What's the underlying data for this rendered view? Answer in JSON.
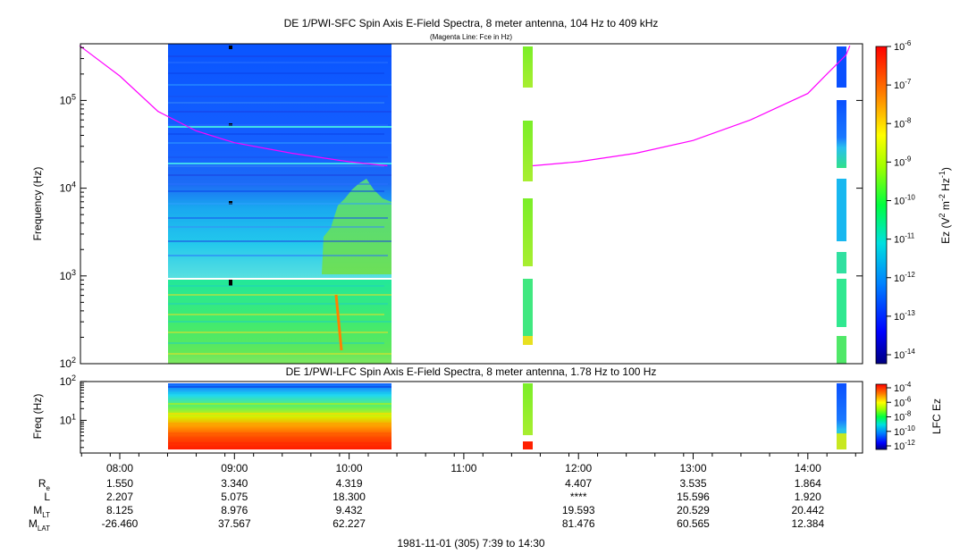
{
  "chart_data": [
    {
      "type": "heatmap",
      "title": "DE 1/PWI-SFC  Spin Axis E-Field Spectra, 8 meter antenna, 104 Hz to 409 kHz",
      "subtitle": "(Magenta Line: Fce in Hz)",
      "ylabel": "Frequency (Hz)",
      "yscale": "log",
      "ylim": [
        100,
        420000
      ],
      "yticks": [
        {
          "v": 100,
          "m": "2"
        },
        {
          "v": 1000,
          "m": "3"
        },
        {
          "v": 10000,
          "m": "4"
        },
        {
          "v": 100000,
          "m": "5"
        }
      ],
      "colorbar": {
        "label_parts": [
          "Ez (V",
          "2",
          " m",
          "-2",
          " Hz",
          "-1",
          ")"
        ],
        "scale": "log",
        "range": [
          1e-14,
          1e-06
        ],
        "ticks": [
          {
            "v": 1e-06,
            "m": "-6"
          },
          {
            "v": 1e-07,
            "m": "-7"
          },
          {
            "v": 1e-08,
            "m": "-8"
          },
          {
            "v": 1e-09,
            "m": "-9"
          },
          {
            "v": 1e-10,
            "m": "-10"
          },
          {
            "v": 1e-11,
            "m": "-11"
          },
          {
            "v": 1e-12,
            "m": "-12"
          },
          {
            "v": 1e-13,
            "m": "-13"
          },
          {
            "v": 1e-14,
            "m": "-14"
          }
        ]
      },
      "data_blocks": [
        {
          "t0": "08:24",
          "t1": "10:21",
          "f0": 950,
          "f1": 420000,
          "value": 1e-13,
          "note": "mostly 1e-13 to 1e-12"
        },
        {
          "t0": "08:24",
          "t1": "10:21",
          "f0": 100,
          "f1": 900,
          "value": 1e-10,
          "note": "mostly 1e-10 to 1e-9"
        },
        {
          "t0": "11:33",
          "t1": "11:38",
          "f0": 100,
          "f1": 420000,
          "value": 1e-10
        },
        {
          "t0": "14:16",
          "t1": "14:22",
          "f0": 100,
          "f1": 420000,
          "value": 1e-13
        }
      ],
      "series": [
        {
          "name": "Fce",
          "x": [
            "07:39",
            "08:00",
            "08:20",
            "08:40",
            "09:00",
            "09:30",
            "10:00",
            "10:20",
            "11:36",
            "12:00",
            "12:30",
            "13:00",
            "13:30",
            "14:00",
            "14:10",
            "14:20",
            "14:22"
          ],
          "y": [
            420000,
            190000,
            75000,
            45000,
            33000,
            25000,
            20000,
            18000,
            18000,
            20000,
            25000,
            35000,
            60000,
            120000,
            200000,
            330000,
            420000
          ]
        }
      ]
    },
    {
      "type": "heatmap",
      "title": "DE 1/PWI-LFC  Spin Axis E-Field Spectra, 8 meter antenna, 1.78 Hz to 100 Hz",
      "ylabel": "Freq (Hz)",
      "yscale": "log",
      "ylim": [
        1.78,
        110
      ],
      "yticks": [
        {
          "v": 10,
          "m": "1"
        },
        {
          "v": 100,
          "m": "2"
        }
      ],
      "colorbar": {
        "label": "LFC Ez",
        "scale": "log",
        "range": [
          1e-12,
          0.0001
        ],
        "ticks": [
          {
            "v": 0.0001,
            "m": "-4"
          },
          {
            "v": 1e-06,
            "m": "-6"
          },
          {
            "v": 1e-08,
            "m": "-8"
          },
          {
            "v": 1e-10,
            "m": "-10"
          },
          {
            "v": 1e-12,
            "m": "-12"
          }
        ]
      },
      "data_blocks": [
        {
          "t0": "08:24",
          "t1": "10:21",
          "f0": 1.78,
          "f1": 100,
          "value": 1e-07,
          "note": "red at bottom, blue at top"
        },
        {
          "t0": "11:33",
          "t1": "11:38",
          "f0": 1.78,
          "f1": 100,
          "value": 1e-08
        },
        {
          "t0": "14:16",
          "t1": "14:22",
          "f0": 1.78,
          "f1": 100,
          "value": 1e-09
        }
      ]
    }
  ],
  "time_axis": {
    "ticks": [
      "08:00",
      "09:00",
      "10:00",
      "11:00",
      "12:00",
      "13:00",
      "14:00"
    ],
    "rows": [
      {
        "label": "R",
        "sub": "e",
        "values": [
          "1.550",
          "3.340",
          "4.319",
          "",
          "4.407",
          "3.535",
          "1.864"
        ]
      },
      {
        "label": "L",
        "sub": "",
        "values": [
          "2.207",
          "5.075",
          "18.300",
          "",
          "****",
          "15.596",
          "1.920"
        ]
      },
      {
        "label": "M",
        "sub": "LT",
        "values": [
          "8.125",
          "8.976",
          "9.432",
          "",
          "19.593",
          "20.529",
          "20.442"
        ]
      },
      {
        "label": "M",
        "sub": "LAT",
        "values": [
          "-26.460",
          "37.567",
          "62.227",
          "",
          "81.476",
          "60.565",
          "12.384"
        ]
      }
    ],
    "footer": "1981-11-01 (305) 7:39 to 14:30"
  }
}
